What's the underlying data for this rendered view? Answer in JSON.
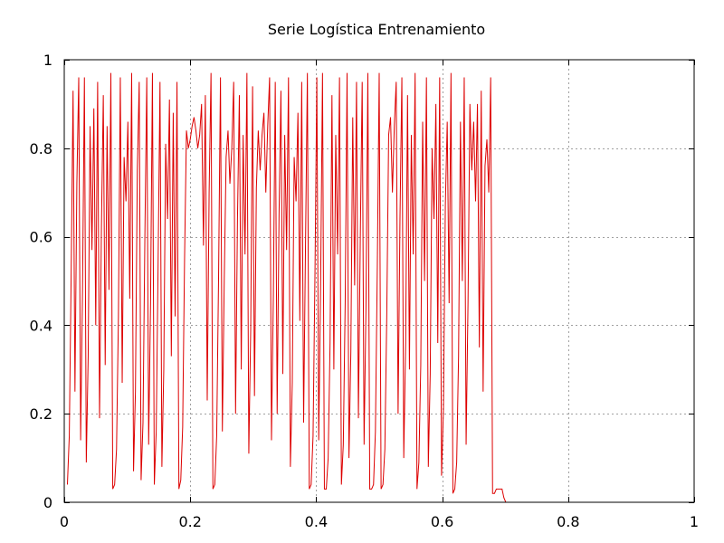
{
  "chart_data": {
    "type": "line",
    "title": "Serie Logística Entrenamiento",
    "xlabel": "",
    "ylabel": "",
    "xlim": [
      0,
      1
    ],
    "ylim": [
      0,
      1
    ],
    "grid": true,
    "legend": "none",
    "x_ticks": [
      {
        "value": 0,
        "label": "0"
      },
      {
        "value": 0.2,
        "label": "0.2"
      },
      {
        "value": 0.4,
        "label": "0.4"
      },
      {
        "value": 0.6,
        "label": "0.6"
      },
      {
        "value": 0.8,
        "label": "0.8"
      },
      {
        "value": 1,
        "label": "1"
      }
    ],
    "y_ticks": [
      {
        "value": 0,
        "label": "0"
      },
      {
        "value": 0.2,
        "label": "0.2"
      },
      {
        "value": 0.4,
        "label": "0.4"
      },
      {
        "value": 0.6,
        "label": "0.6"
      },
      {
        "value": 0.8,
        "label": "0.8"
      },
      {
        "value": 1,
        "label": "1"
      }
    ],
    "series": [
      {
        "color": "#dd0000",
        "x_start": 0.005,
        "x_step": 0.003,
        "values": [
          0.04,
          0.15,
          0.52,
          0.93,
          0.25,
          0.72,
          0.96,
          0.14,
          0.48,
          0.96,
          0.09,
          0.33,
          0.85,
          0.57,
          0.89,
          0.4,
          0.95,
          0.19,
          0.62,
          0.92,
          0.31,
          0.85,
          0.48,
          0.97,
          0.03,
          0.04,
          0.12,
          0.42,
          0.96,
          0.27,
          0.78,
          0.68,
          0.86,
          0.46,
          0.97,
          0.07,
          0.25,
          0.75,
          0.95,
          0.05,
          0.18,
          0.6,
          0.96,
          0.13,
          0.45,
          0.97,
          0.04,
          0.16,
          0.54,
          0.95,
          0.08,
          0.3,
          0.81,
          0.64,
          0.91,
          0.33,
          0.88,
          0.42,
          0.95,
          0.03,
          0.05,
          0.17,
          0.55,
          0.84,
          0.8,
          0.82,
          0.85,
          0.87,
          0.84,
          0.8,
          0.83,
          0.9,
          0.58,
          0.92,
          0.23,
          0.7,
          0.97,
          0.03,
          0.04,
          0.15,
          0.51,
          0.96,
          0.16,
          0.5,
          0.78,
          0.84,
          0.72,
          0.8,
          0.95,
          0.2,
          0.64,
          0.92,
          0.3,
          0.83,
          0.56,
          0.97,
          0.11,
          0.39,
          0.94,
          0.24,
          0.71,
          0.84,
          0.75,
          0.83,
          0.88,
          0.7,
          0.85,
          0.96,
          0.14,
          0.47,
          0.95,
          0.2,
          0.65,
          0.93,
          0.29,
          0.83,
          0.57,
          0.96,
          0.08,
          0.27,
          0.78,
          0.68,
          0.88,
          0.41,
          0.95,
          0.18,
          0.58,
          0.97,
          0.03,
          0.04,
          0.15,
          0.51,
          0.96,
          0.14,
          0.49,
          0.97,
          0.03,
          0.03,
          0.1,
          0.36,
          0.92,
          0.3,
          0.83,
          0.56,
          0.96,
          0.04,
          0.13,
          0.45,
          0.97,
          0.1,
          0.34,
          0.87,
          0.49,
          0.95,
          0.19,
          0.6,
          0.95,
          0.13,
          0.44,
          0.97,
          0.03,
          0.03,
          0.04,
          0.16,
          0.53,
          0.97,
          0.03,
          0.04,
          0.12,
          0.42,
          0.83,
          0.87,
          0.7,
          0.85,
          0.95,
          0.2,
          0.64,
          0.96,
          0.1,
          0.36,
          0.92,
          0.3,
          0.83,
          0.56,
          0.97,
          0.03,
          0.09,
          0.31,
          0.86,
          0.5,
          0.96,
          0.08,
          0.29,
          0.8,
          0.64,
          0.9,
          0.36,
          0.96,
          0.06,
          0.21,
          0.67,
          0.86,
          0.45,
          0.97,
          0.02,
          0.03,
          0.09,
          0.33,
          0.86,
          0.5,
          0.96,
          0.13,
          0.45,
          0.9,
          0.75,
          0.86,
          0.68,
          0.9,
          0.35,
          0.93,
          0.25,
          0.76,
          0.82,
          0.7,
          0.96,
          0.02,
          0.02,
          0.03,
          0.03,
          0.03,
          0.03,
          0.01,
          0.0
        ]
      }
    ]
  }
}
